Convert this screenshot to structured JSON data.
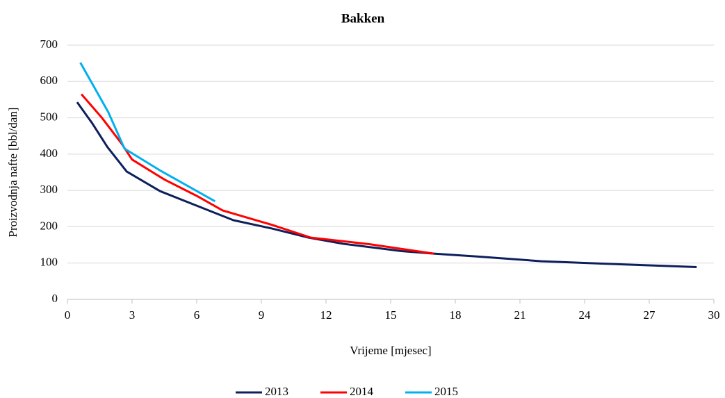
{
  "chart_data": {
    "type": "line",
    "title": "Bakken",
    "x_label": "Vrijeme [mjesec]",
    "y_label": "Proizvodnja nafte [bbl/dan]",
    "xlim": [
      0,
      30
    ],
    "xticks": [
      0,
      3,
      6,
      9,
      12,
      15,
      18,
      21,
      24,
      27,
      30
    ],
    "ylim": [
      0,
      700
    ],
    "yticks": [
      0,
      100,
      200,
      300,
      400,
      500,
      600,
      700
    ],
    "grid": true,
    "legend": "bottom",
    "series": [
      {
        "name": "2013",
        "color": "#0d1f5c",
        "x": [
          0.45,
          1.15,
          1.85,
          2.75,
          4.3,
          6.0,
          7.7,
          9.5,
          11.2,
          12.8,
          15.5,
          17,
          19,
          22,
          25,
          29.2
        ],
        "values": [
          543,
          485,
          420,
          352,
          298,
          258,
          218,
          195,
          170,
          153,
          133,
          126,
          118,
          105,
          98,
          89
        ]
      },
      {
        "name": "2014",
        "color": "#ff0000",
        "x": [
          0.65,
          1.6,
          2.5,
          3.0,
          4.5,
          6.0,
          7.2,
          9.5,
          11.3,
          14,
          17
        ],
        "values": [
          565,
          500,
          430,
          385,
          330,
          285,
          245,
          205,
          170,
          152,
          126
        ]
      },
      {
        "name": "2015",
        "color": "#00b0f0",
        "x": [
          0.6,
          1.9,
          2.65,
          4.3,
          6.85
        ],
        "values": [
          652,
          515,
          415,
          355,
          270
        ]
      }
    ]
  }
}
